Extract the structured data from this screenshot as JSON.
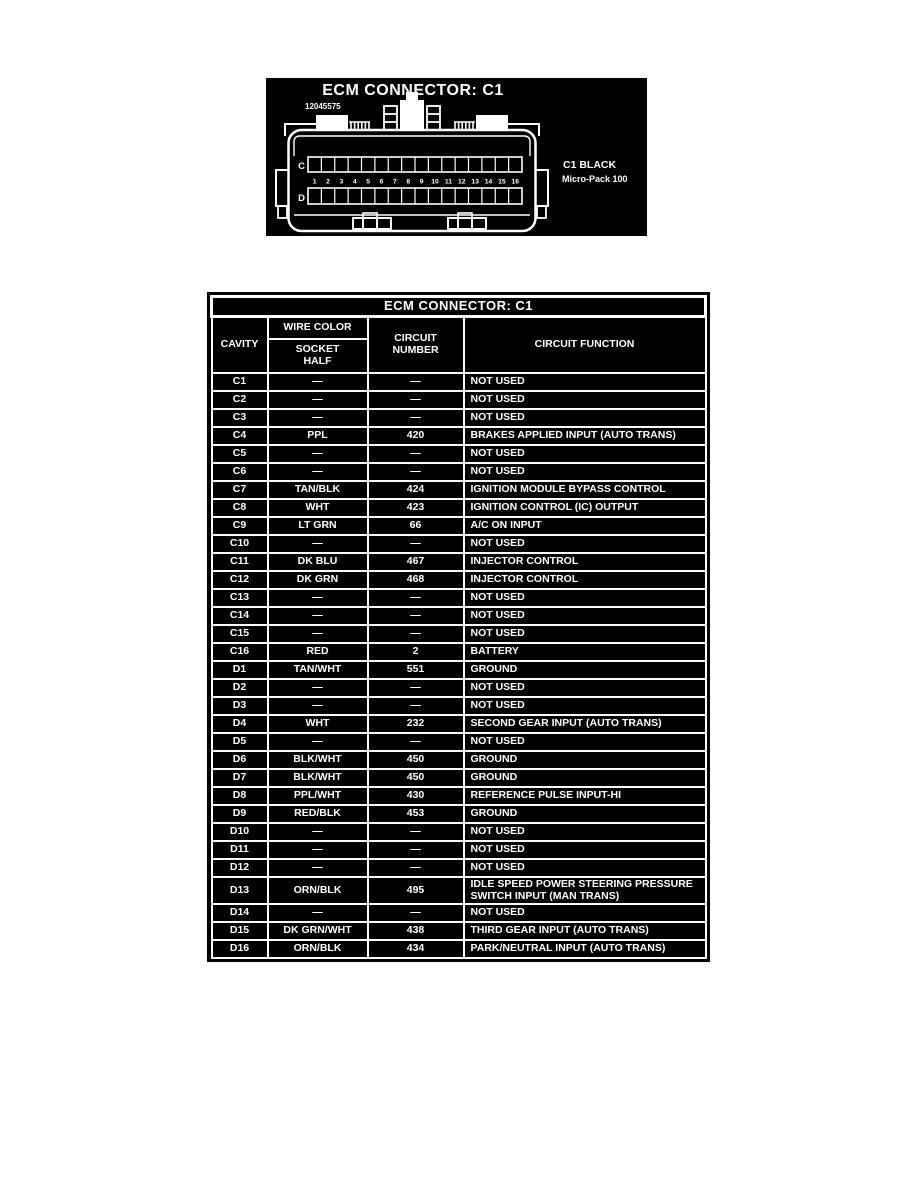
{
  "diagram": {
    "title": "ECM CONNECTOR: C1",
    "part_number": "12045575",
    "row_c_label": "C",
    "row_d_label": "D",
    "pin_numbers": [
      "1",
      "2",
      "3",
      "4",
      "5",
      "6",
      "7",
      "8",
      "9",
      "10",
      "11",
      "12",
      "13",
      "14",
      "15",
      "16"
    ],
    "color_label": "C1 BLACK",
    "type_label": "Micro-Pack 100",
    "background": "#000000",
    "foreground": "#ffffff"
  },
  "table": {
    "title": "ECM CONNECTOR: C1",
    "headers": {
      "cavity": "CAVITY",
      "wire_color": "WIRE COLOR",
      "socket_half": "SOCKET\nHALF",
      "circuit_number": "CIRCUIT\nNUMBER",
      "circuit_function": "CIRCUIT FUNCTION"
    },
    "rows": [
      {
        "cavity": "C1",
        "wire_color": "—",
        "circuit_number": "—",
        "circuit_function": "NOT USED"
      },
      {
        "cavity": "C2",
        "wire_color": "—",
        "circuit_number": "—",
        "circuit_function": "NOT USED"
      },
      {
        "cavity": "C3",
        "wire_color": "—",
        "circuit_number": "—",
        "circuit_function": "NOT USED"
      },
      {
        "cavity": "C4",
        "wire_color": "PPL",
        "circuit_number": "420",
        "circuit_function": "BRAKES APPLIED INPUT (AUTO TRANS)"
      },
      {
        "cavity": "C5",
        "wire_color": "—",
        "circuit_number": "—",
        "circuit_function": "NOT USED"
      },
      {
        "cavity": "C6",
        "wire_color": "—",
        "circuit_number": "—",
        "circuit_function": "NOT USED"
      },
      {
        "cavity": "C7",
        "wire_color": "TAN/BLK",
        "circuit_number": "424",
        "circuit_function": "IGNITION MODULE BYPASS CONTROL"
      },
      {
        "cavity": "C8",
        "wire_color": "WHT",
        "circuit_number": "423",
        "circuit_function": "IGNITION CONTROL (IC) OUTPUT"
      },
      {
        "cavity": "C9",
        "wire_color": "LT GRN",
        "circuit_number": "66",
        "circuit_function": "A/C ON INPUT"
      },
      {
        "cavity": "C10",
        "wire_color": "—",
        "circuit_number": "—",
        "circuit_function": "NOT USED"
      },
      {
        "cavity": "C11",
        "wire_color": "DK BLU",
        "circuit_number": "467",
        "circuit_function": "INJECTOR CONTROL"
      },
      {
        "cavity": "C12",
        "wire_color": "DK GRN",
        "circuit_number": "468",
        "circuit_function": "INJECTOR CONTROL"
      },
      {
        "cavity": "C13",
        "wire_color": "—",
        "circuit_number": "—",
        "circuit_function": "NOT USED"
      },
      {
        "cavity": "C14",
        "wire_color": "—",
        "circuit_number": "—",
        "circuit_function": "NOT USED"
      },
      {
        "cavity": "C15",
        "wire_color": "—",
        "circuit_number": "—",
        "circuit_function": "NOT USED"
      },
      {
        "cavity": "C16",
        "wire_color": "RED",
        "circuit_number": "2",
        "circuit_function": "BATTERY"
      },
      {
        "cavity": "D1",
        "wire_color": "TAN/WHT",
        "circuit_number": "551",
        "circuit_function": "GROUND"
      },
      {
        "cavity": "D2",
        "wire_color": "—",
        "circuit_number": "—",
        "circuit_function": "NOT USED"
      },
      {
        "cavity": "D3",
        "wire_color": "—",
        "circuit_number": "—",
        "circuit_function": "NOT USED"
      },
      {
        "cavity": "D4",
        "wire_color": "WHT",
        "circuit_number": "232",
        "circuit_function": "SECOND GEAR INPUT (AUTO TRANS)"
      },
      {
        "cavity": "D5",
        "wire_color": "—",
        "circuit_number": "—",
        "circuit_function": "NOT USED"
      },
      {
        "cavity": "D6",
        "wire_color": "BLK/WHT",
        "circuit_number": "450",
        "circuit_function": "GROUND"
      },
      {
        "cavity": "D7",
        "wire_color": "BLK/WHT",
        "circuit_number": "450",
        "circuit_function": "GROUND"
      },
      {
        "cavity": "D8",
        "wire_color": "PPL/WHT",
        "circuit_number": "430",
        "circuit_function": "REFERENCE PULSE INPUT-HI"
      },
      {
        "cavity": "D9",
        "wire_color": "RED/BLK",
        "circuit_number": "453",
        "circuit_function": "GROUND"
      },
      {
        "cavity": "D10",
        "wire_color": "—",
        "circuit_number": "—",
        "circuit_function": "NOT USED"
      },
      {
        "cavity": "D11",
        "wire_color": "—",
        "circuit_number": "—",
        "circuit_function": "NOT USED"
      },
      {
        "cavity": "D12",
        "wire_color": "—",
        "circuit_number": "—",
        "circuit_function": "NOT USED"
      },
      {
        "cavity": "D13",
        "wire_color": "ORN/BLK",
        "circuit_number": "495",
        "circuit_function": "IDLE SPEED POWER STEERING PRESSURE SWITCH INPUT (MAN TRANS)"
      },
      {
        "cavity": "D14",
        "wire_color": "—",
        "circuit_number": "—",
        "circuit_function": "NOT USED"
      },
      {
        "cavity": "D15",
        "wire_color": "DK GRN/WHT",
        "circuit_number": "438",
        "circuit_function": "THIRD GEAR INPUT (AUTO TRANS)"
      },
      {
        "cavity": "D16",
        "wire_color": "ORN/BLK",
        "circuit_number": "434",
        "circuit_function": "PARK/NEUTRAL INPUT (AUTO TRANS)"
      }
    ]
  }
}
